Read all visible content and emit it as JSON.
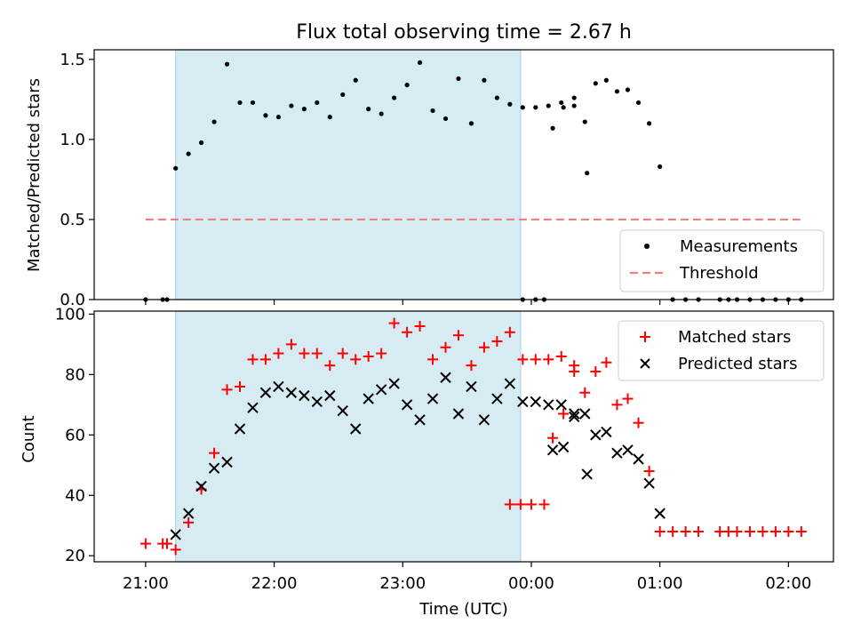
{
  "title": "Flux total observing time = 2.67 h",
  "colors": {
    "measurement": "#000000",
    "threshold": "#f08080",
    "matched": "#ff0000",
    "predicted": "#000000",
    "shade": "#add8e6"
  },
  "chart_data": [
    {
      "type": "scatter",
      "ylabel": "Matched/Predicted stars",
      "xlim": [
        "20:36",
        "02:21"
      ],
      "ylim": [
        0,
        1.56
      ],
      "yticks": [
        "0.0",
        "0.5",
        "1.0",
        "1.5"
      ],
      "grid": false,
      "legend": {
        "position": "lower-right",
        "entries": [
          "Measurements",
          "Threshold"
        ]
      },
      "shaded_interval": [
        "21:14",
        "23:55"
      ],
      "threshold": {
        "y": 0.5,
        "x_start": "21:00",
        "x_end": "02:06",
        "label": "Threshold"
      },
      "series": [
        {
          "name": "Measurements",
          "marker": "dot",
          "points": [
            [
              "21:00",
              0.0
            ],
            [
              "21:08",
              0.0
            ],
            [
              "21:10",
              0.0
            ],
            [
              "21:14",
              0.82
            ],
            [
              "21:20",
              0.91
            ],
            [
              "21:26",
              0.98
            ],
            [
              "21:32",
              1.11
            ],
            [
              "21:38",
              1.47
            ],
            [
              "21:44",
              1.23
            ],
            [
              "21:50",
              1.23
            ],
            [
              "21:56",
              1.15
            ],
            [
              "22:02",
              1.14
            ],
            [
              "22:08",
              1.21
            ],
            [
              "22:14",
              1.19
            ],
            [
              "22:20",
              1.23
            ],
            [
              "22:26",
              1.14
            ],
            [
              "22:32",
              1.28
            ],
            [
              "22:38",
              1.37
            ],
            [
              "22:44",
              1.19
            ],
            [
              "22:50",
              1.16
            ],
            [
              "22:56",
              1.26
            ],
            [
              "23:02",
              1.34
            ],
            [
              "23:08",
              1.48
            ],
            [
              "23:14",
              1.18
            ],
            [
              "23:20",
              1.13
            ],
            [
              "23:26",
              1.38
            ],
            [
              "23:32",
              1.1
            ],
            [
              "23:38",
              1.37
            ],
            [
              "23:44",
              1.26
            ],
            [
              "23:50",
              1.22
            ],
            [
              "23:56",
              1.2
            ],
            [
              "00:02",
              1.2
            ],
            [
              "00:08",
              1.21
            ],
            [
              "00:14",
              1.23
            ],
            [
              "00:20",
              1.26
            ],
            [
              "00:26",
              0.79
            ],
            [
              "23:56",
              0.0
            ],
            [
              "00:02",
              0.0
            ],
            [
              "00:06",
              0.0
            ],
            [
              "00:10",
              1.07
            ],
            [
              "00:15",
              1.2
            ],
            [
              "00:20",
              1.21
            ],
            [
              "00:25",
              1.11
            ],
            [
              "00:30",
              1.35
            ],
            [
              "00:35",
              1.37
            ],
            [
              "00:40",
              1.3
            ],
            [
              "00:45",
              1.31
            ],
            [
              "00:50",
              1.23
            ],
            [
              "00:55",
              1.1
            ],
            [
              "01:00",
              0.83
            ],
            [
              "01:06",
              0.0
            ],
            [
              "01:12",
              0.0
            ],
            [
              "01:18",
              0.0
            ],
            [
              "01:28",
              0.0
            ],
            [
              "01:32",
              0.0
            ],
            [
              "01:36",
              0.0
            ],
            [
              "01:42",
              0.0
            ],
            [
              "01:48",
              0.0
            ],
            [
              "01:54",
              0.0
            ],
            [
              "02:00",
              0.0
            ],
            [
              "02:06",
              0.0
            ]
          ]
        }
      ]
    },
    {
      "type": "scatter",
      "xlabel": "Time (UTC)",
      "ylabel": "Count",
      "xlim": [
        "20:36",
        "02:21"
      ],
      "ylim": [
        18,
        101
      ],
      "yticks": [
        "20",
        "40",
        "60",
        "80",
        "100"
      ],
      "xticks": [
        "21:00",
        "22:00",
        "23:00",
        "00:00",
        "01:00",
        "02:00"
      ],
      "grid": false,
      "legend": {
        "position": "top-right",
        "entries": [
          "Matched stars",
          "Predicted stars"
        ]
      },
      "shaded_interval": [
        "21:14",
        "23:55"
      ],
      "series": [
        {
          "name": "Matched stars",
          "marker": "plus",
          "points": [
            [
              "21:00",
              24
            ],
            [
              "21:08",
              24
            ],
            [
              "21:10",
              24
            ],
            [
              "21:14",
              22
            ],
            [
              "21:20",
              31
            ],
            [
              "21:26",
              42
            ],
            [
              "21:32",
              54
            ],
            [
              "21:38",
              75
            ],
            [
              "21:44",
              76
            ],
            [
              "21:50",
              85
            ],
            [
              "21:56",
              85
            ],
            [
              "22:02",
              87
            ],
            [
              "22:08",
              90
            ],
            [
              "22:14",
              87
            ],
            [
              "22:20",
              87
            ],
            [
              "22:26",
              83
            ],
            [
              "22:32",
              87
            ],
            [
              "22:38",
              85
            ],
            [
              "22:44",
              86
            ],
            [
              "22:50",
              87
            ],
            [
              "22:56",
              97
            ],
            [
              "23:02",
              94
            ],
            [
              "23:08",
              96
            ],
            [
              "23:14",
              85
            ],
            [
              "23:20",
              89
            ],
            [
              "23:26",
              93
            ],
            [
              "23:32",
              83
            ],
            [
              "23:38",
              89
            ],
            [
              "23:44",
              91
            ],
            [
              "23:50",
              94
            ],
            [
              "23:56",
              85
            ],
            [
              "00:02",
              85
            ],
            [
              "00:08",
              85
            ],
            [
              "00:14",
              86
            ],
            [
              "00:20",
              83
            ],
            [
              "23:50",
              37
            ],
            [
              "23:55",
              37
            ],
            [
              "00:00",
              37
            ],
            [
              "00:06",
              37
            ],
            [
              "00:10",
              59
            ],
            [
              "00:15",
              67
            ],
            [
              "00:20",
              81
            ],
            [
              "00:25",
              74
            ],
            [
              "00:30",
              81
            ],
            [
              "00:35",
              84
            ],
            [
              "00:40",
              70
            ],
            [
              "00:45",
              72
            ],
            [
              "00:50",
              64
            ],
            [
              "00:55",
              48
            ],
            [
              "01:00",
              28
            ],
            [
              "01:06",
              28
            ],
            [
              "01:12",
              28
            ],
            [
              "01:18",
              28
            ],
            [
              "01:28",
              28
            ],
            [
              "01:32",
              28
            ],
            [
              "01:36",
              28
            ],
            [
              "01:42",
              28
            ],
            [
              "01:48",
              28
            ],
            [
              "01:54",
              28
            ],
            [
              "02:00",
              28
            ],
            [
              "02:06",
              28
            ]
          ]
        },
        {
          "name": "Predicted stars",
          "marker": "x",
          "points": [
            [
              "21:14",
              27
            ],
            [
              "21:20",
              34
            ],
            [
              "21:26",
              43
            ],
            [
              "21:32",
              49
            ],
            [
              "21:38",
              51
            ],
            [
              "21:44",
              62
            ],
            [
              "21:50",
              69
            ],
            [
              "21:56",
              74
            ],
            [
              "22:02",
              76
            ],
            [
              "22:08",
              74
            ],
            [
              "22:14",
              73
            ],
            [
              "22:20",
              71
            ],
            [
              "22:26",
              73
            ],
            [
              "22:32",
              68
            ],
            [
              "22:38",
              62
            ],
            [
              "22:44",
              72
            ],
            [
              "22:50",
              75
            ],
            [
              "22:56",
              77
            ],
            [
              "23:02",
              70
            ],
            [
              "23:08",
              65
            ],
            [
              "23:14",
              72
            ],
            [
              "23:20",
              79
            ],
            [
              "23:26",
              67
            ],
            [
              "23:32",
              76
            ],
            [
              "23:38",
              65
            ],
            [
              "23:44",
              72
            ],
            [
              "23:50",
              77
            ],
            [
              "23:56",
              71
            ],
            [
              "00:02",
              71
            ],
            [
              "00:08",
              70
            ],
            [
              "00:14",
              70
            ],
            [
              "00:20",
              66
            ],
            [
              "00:26",
              47
            ],
            [
              "00:10",
              55
            ],
            [
              "00:15",
              56
            ],
            [
              "00:20",
              67
            ],
            [
              "00:25",
              67
            ],
            [
              "00:30",
              60
            ],
            [
              "00:35",
              61
            ],
            [
              "00:40",
              54
            ],
            [
              "00:45",
              55
            ],
            [
              "00:50",
              52
            ],
            [
              "00:55",
              44
            ],
            [
              "01:00",
              34
            ]
          ]
        }
      ]
    }
  ]
}
